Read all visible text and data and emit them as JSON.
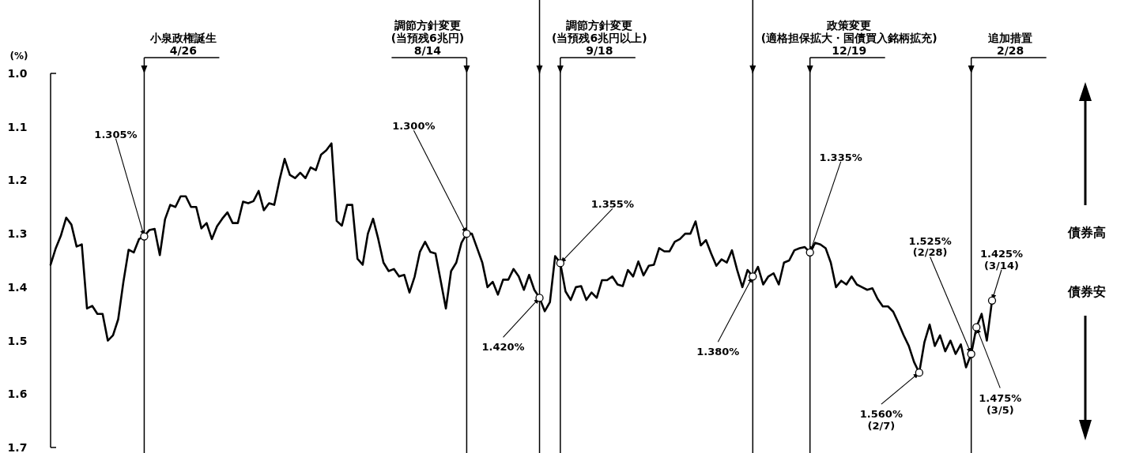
{
  "chart_data": {
    "type": "line",
    "ylabel": "(%)",
    "categories": [
      null,
      null,
      null,
      null,
      null,
      null,
      null,
      null,
      null,
      null,
      null,
      null,
      null,
      null,
      null,
      null,
      null,
      null,
      null,
      null,
      null,
      null,
      null,
      null,
      null,
      null,
      null,
      null,
      null,
      null,
      null,
      null,
      null,
      null,
      null,
      null,
      null,
      null,
      null,
      null,
      null,
      null,
      null,
      null,
      null,
      null,
      null,
      null,
      null,
      null,
      null,
      null,
      null,
      null,
      null,
      null,
      null,
      null,
      null,
      null,
      null,
      null,
      null,
      null,
      null,
      null,
      null,
      null,
      null,
      null,
      null,
      null,
      null,
      null,
      null,
      null,
      null,
      null,
      null,
      null,
      null,
      null,
      null,
      null,
      null,
      null,
      null,
      null,
      null,
      null,
      null,
      null,
      null,
      null,
      null,
      null,
      null,
      null,
      null,
      null,
      null,
      null,
      null,
      null,
      null,
      null,
      null,
      null,
      null,
      null,
      null,
      null,
      null,
      null,
      null,
      null,
      null,
      null,
      null,
      null,
      null,
      null,
      null,
      null,
      null,
      null,
      null,
      null,
      null,
      null,
      null,
      null,
      null,
      null,
      null,
      null,
      null,
      null,
      null,
      null,
      null,
      null,
      null,
      null,
      null,
      null,
      null,
      null,
      null,
      null,
      null,
      null,
      null,
      null,
      null,
      null,
      null,
      null,
      null,
      null,
      null,
      null,
      null,
      null,
      null,
      null,
      null,
      null,
      null,
      null,
      null,
      null,
      null,
      null,
      null,
      null,
      null,
      null,
      null,
      null,
      null,
      null
    ],
    "series": [
      {
        "color": "#000000",
        "values": [
          1.358,
          1.327,
          1.303,
          1.27,
          1.283,
          1.324,
          1.32,
          1.44,
          1.435,
          1.45,
          1.45,
          1.5,
          1.49,
          1.46,
          1.39,
          1.33,
          1.335,
          1.31,
          1.305,
          1.293,
          1.291,
          1.34,
          1.273,
          1.246,
          1.25,
          1.23,
          1.23,
          1.25,
          1.25,
          1.29,
          1.28,
          1.31,
          1.286,
          1.272,
          1.26,
          1.28,
          1.28,
          1.24,
          1.243,
          1.239,
          1.22,
          1.256,
          1.243,
          1.246,
          1.2,
          1.16,
          1.19,
          1.196,
          1.186,
          1.196,
          1.176,
          1.181,
          1.152,
          1.144,
          1.131,
          1.276,
          1.285,
          1.246,
          1.246,
          1.347,
          1.358,
          1.3,
          1.272,
          1.31,
          1.354,
          1.37,
          1.366,
          1.38,
          1.377,
          1.41,
          1.38,
          1.334,
          1.315,
          1.334,
          1.337,
          1.388,
          1.44,
          1.37,
          1.354,
          1.317,
          1.3,
          1.3,
          1.327,
          1.354,
          1.4,
          1.39,
          1.414,
          1.386,
          1.386,
          1.366,
          1.38,
          1.405,
          1.377,
          1.405,
          1.42,
          1.445,
          1.428,
          1.342,
          1.355,
          1.408,
          1.424,
          1.4,
          1.398,
          1.424,
          1.41,
          1.42,
          1.387,
          1.387,
          1.38,
          1.395,
          1.398,
          1.368,
          1.38,
          1.352,
          1.378,
          1.36,
          1.358,
          1.327,
          1.333,
          1.333,
          1.315,
          1.31,
          1.3,
          1.3,
          1.277,
          1.322,
          1.312,
          1.337,
          1.36,
          1.348,
          1.354,
          1.331,
          1.368,
          1.4,
          1.368,
          1.38,
          1.362,
          1.395,
          1.38,
          1.374,
          1.395,
          1.354,
          1.35,
          1.331,
          1.327,
          1.325,
          1.335,
          1.317,
          1.32,
          1.327,
          1.354,
          1.4,
          1.388,
          1.395,
          1.38,
          1.395,
          1.4,
          1.405,
          1.402,
          1.422,
          1.436,
          1.436,
          1.446,
          1.467,
          1.49,
          1.51,
          1.54,
          1.56,
          1.503,
          1.47,
          1.51,
          1.49,
          1.52,
          1.5,
          1.525,
          1.507,
          1.55,
          1.525,
          1.475,
          1.45,
          1.5,
          1.425
        ]
      }
    ],
    "ylim": [
      1.7,
      1.0
    ],
    "yticks": [
      {
        "value": 1.0,
        "label": "1.0"
      },
      1.1,
      1.2,
      1.3,
      1.4,
      1.5,
      1.6,
      1.7
    ],
    "tick_labels": "y",
    "annotations": [
      "小泉政権誕生\n4/26",
      "調節方針変更\n(当預残6兆円)\n8/14",
      "調節方針変更\n(当預残6兆円以上)\n9/18",
      "政策変更\n(適格担保拡大・国債買入銘柄拡充)\n12/19",
      "追加措置\n2/28",
      "1.305%",
      "1.300%",
      "1.420%",
      "1.355%",
      "1.380%",
      "1.335%",
      "1.560%\n(2/7)",
      "1.525%\n(2/28)",
      "1.475%\n(3/5)",
      "1.425%\n(3/14)",
      "債券高",
      "債券安"
    ]
  }
}
